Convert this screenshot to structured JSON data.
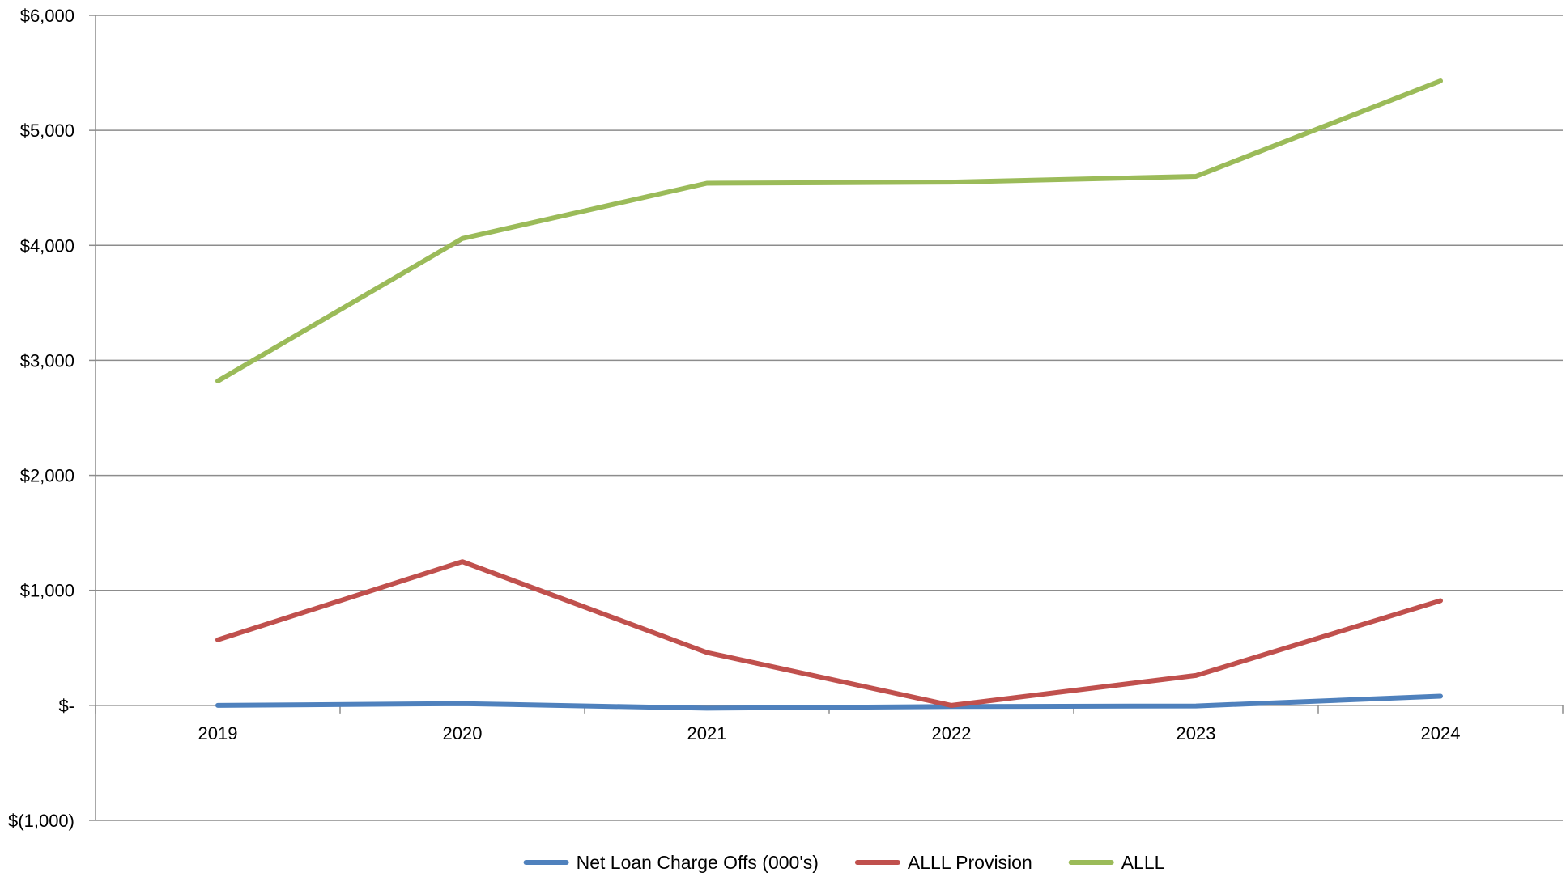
{
  "chart_data": {
    "type": "line",
    "categories": [
      "2019",
      "2020",
      "2021",
      "2022",
      "2023",
      "2024"
    ],
    "series": [
      {
        "name": "Net Loan Charge Offs (000's)",
        "color": "#4F81BD",
        "values": [
          0,
          15,
          -25,
          -10,
          -5,
          80
        ]
      },
      {
        "name": "ALLL Provision",
        "color": "#C0504D",
        "values": [
          570,
          1250,
          460,
          0,
          260,
          910
        ]
      },
      {
        "name": "ALLL",
        "color": "#9BBB59",
        "values": [
          2820,
          4060,
          4540,
          4550,
          4600,
          5430
        ]
      }
    ],
    "y_ticks": [
      {
        "value": 6000,
        "label": "$6,000"
      },
      {
        "value": 5000,
        "label": "$5,000"
      },
      {
        "value": 4000,
        "label": "$4,000"
      },
      {
        "value": 3000,
        "label": "$3,000"
      },
      {
        "value": 2000,
        "label": "$2,000"
      },
      {
        "value": 1000,
        "label": "$1,000"
      },
      {
        "value": 0,
        "label": "$-"
      },
      {
        "value": -1000,
        "label": "$(1,000)"
      }
    ],
    "ylim": [
      -1000,
      6000
    ],
    "grid": true,
    "legend_position": "bottom",
    "title": "",
    "xlabel": "",
    "ylabel": ""
  }
}
